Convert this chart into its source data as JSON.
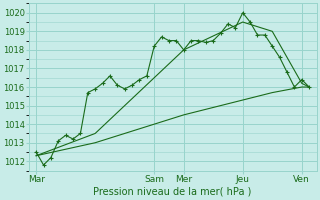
{
  "xlabel": "Pression niveau de la mer( hPa )",
  "bg_color": "#c8ece8",
  "grid_color": "#98d4cc",
  "line_color": "#1a6b1a",
  "ylim": [
    1011.5,
    1020.5
  ],
  "yticks": [
    1012,
    1013,
    1014,
    1015,
    1016,
    1017,
    1018,
    1019,
    1020
  ],
  "day_labels": [
    "Mar",
    "Sam",
    "Mer",
    "Jeu",
    "Ven"
  ],
  "day_positions": [
    0,
    16,
    20,
    28,
    36
  ],
  "vline_positions": [
    16,
    20,
    28,
    36
  ],
  "xlim": [
    -1,
    38
  ],
  "series1": {
    "x": [
      0,
      1,
      2,
      3,
      4,
      5,
      6,
      7,
      8,
      9,
      10,
      11,
      12,
      13,
      14,
      15,
      16,
      17,
      18,
      19,
      20,
      21,
      22,
      23,
      24,
      25,
      26,
      27,
      28,
      29,
      30,
      31,
      32,
      33,
      34,
      35,
      36,
      37
    ],
    "y": [
      1012.5,
      1011.8,
      1012.2,
      1013.1,
      1013.4,
      1013.2,
      1013.5,
      1015.7,
      1015.9,
      1016.2,
      1016.6,
      1016.1,
      1015.9,
      1016.1,
      1016.4,
      1016.6,
      1018.2,
      1018.7,
      1018.5,
      1018.5,
      1018.0,
      1018.5,
      1018.5,
      1018.4,
      1018.5,
      1018.9,
      1019.4,
      1019.2,
      1020.0,
      1019.5,
      1018.8,
      1018.8,
      1018.2,
      1017.6,
      1016.8,
      1016.0,
      1016.4,
      1016.0
    ]
  },
  "series2": {
    "x": [
      0,
      8,
      16,
      20,
      28,
      32,
      36,
      37
    ],
    "y": [
      1012.3,
      1013.5,
      1016.5,
      1018.0,
      1019.5,
      1019.0,
      1016.2,
      1016.0
    ]
  },
  "series3": {
    "x": [
      0,
      8,
      16,
      20,
      28,
      32,
      36,
      37
    ],
    "y": [
      1012.3,
      1013.0,
      1014.0,
      1014.5,
      1015.3,
      1015.7,
      1016.0,
      1016.0
    ]
  }
}
